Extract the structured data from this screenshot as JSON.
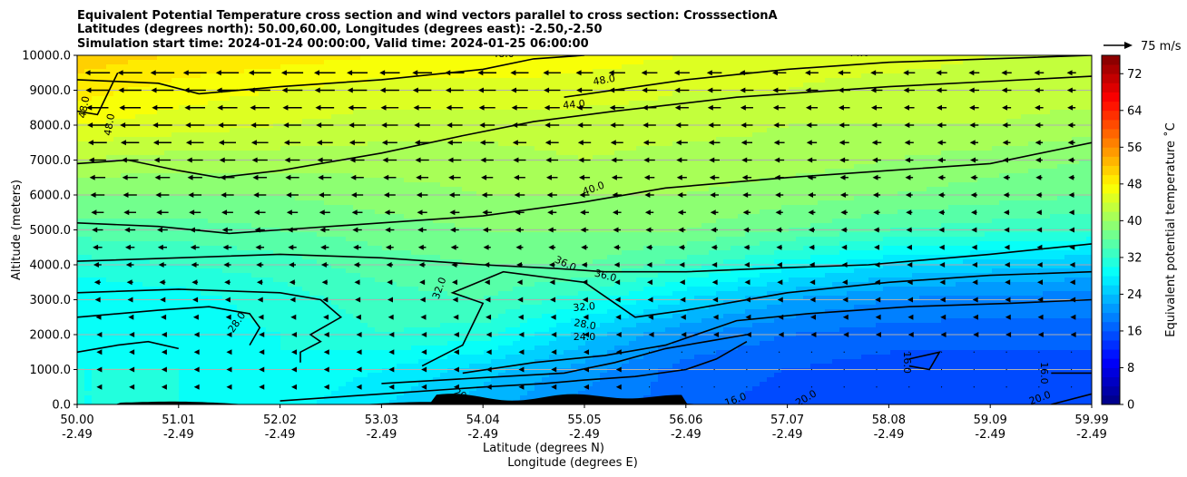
{
  "title_lines": [
    "Equivalent Potential Temperature cross section and wind vectors parallel to cross section: CrosssectionA",
    "Latitudes (degrees north): 50.00,60.00, Longitudes (degrees east): -2.50,-2.50",
    "Simulation start time: 2024-01-24 00:00:00, Valid time: 2024-01-25 06:00:00"
  ],
  "chart_data": {
    "type": "heatmap",
    "title": "Equivalent Potential Temperature cross section and wind vectors parallel to cross section: CrosssectionA",
    "ylabel": "Altitude (meters)",
    "xlabel_lines": [
      "Latitude (degrees N)",
      "Longitude (degrees E)"
    ],
    "ylim": [
      0,
      10000
    ],
    "x_ticks": [
      {
        "lat": "50.00",
        "lon": "-2.49"
      },
      {
        "lat": "51.01",
        "lon": "-2.49"
      },
      {
        "lat": "52.02",
        "lon": "-2.49"
      },
      {
        "lat": "53.03",
        "lon": "-2.49"
      },
      {
        "lat": "54.04",
        "lon": "-2.49"
      },
      {
        "lat": "55.05",
        "lon": "-2.49"
      },
      {
        "lat": "56.06",
        "lon": "-2.49"
      },
      {
        "lat": "57.07",
        "lon": "-2.49"
      },
      {
        "lat": "58.08",
        "lon": "-2.49"
      },
      {
        "lat": "59.09",
        "lon": "-2.49"
      },
      {
        "lat": "59.99",
        "lon": "-2.49"
      }
    ],
    "y_ticks": [
      "0.0",
      "1000.0",
      "2000.0",
      "3000.0",
      "4000.0",
      "5000.0",
      "6000.0",
      "7000.0",
      "8000.0",
      "9000.0",
      "10000.0"
    ],
    "y_tick_values": [
      0,
      1000,
      2000,
      3000,
      4000,
      5000,
      6000,
      7000,
      8000,
      9000,
      10000
    ],
    "grid": "horizontal",
    "colormap": "jet",
    "colorbar": {
      "label": "Equivalent potential temperature ˚C",
      "min": 0,
      "max": 76,
      "step": 2,
      "ticks": [
        "0",
        "8",
        "16",
        "24",
        "32",
        "40",
        "48",
        "56",
        "64",
        "72"
      ],
      "tick_values": [
        0,
        8,
        16,
        24,
        32,
        40,
        48,
        56,
        64,
        72
      ]
    },
    "quiver_key": "75 m/s",
    "contour_levels": [
      16.0,
      20.0,
      24.0,
      28.0,
      32.0,
      36.0,
      40.0,
      44.0,
      48.0
    ],
    "contour_labels": [
      "48.0",
      "48.0",
      "48.0",
      "44.0",
      "48.0",
      "44.0",
      "40.0",
      "36.0",
      "36.0",
      "32.0",
      "32.0",
      "28.0",
      "28.0",
      "24.0",
      "16.0",
      "16.0",
      "16.0",
      "20.0",
      "20.0",
      "20.0"
    ],
    "field_sample": {
      "x_lat": [
        50.0,
        51.01,
        52.02,
        53.03,
        54.04,
        55.05,
        56.06,
        57.07,
        58.08,
        59.09,
        59.99
      ],
      "z_m": [
        0,
        1000,
        2000,
        3000,
        4000,
        5000,
        6000,
        7000,
        8000,
        9000,
        10000
      ],
      "theta_e_c": [
        [
          30,
          30,
          29,
          26,
          23,
          19,
          17,
          15,
          14,
          14,
          14
        ],
        [
          30,
          30,
          30,
          28,
          25,
          21,
          17,
          16,
          15,
          15,
          15
        ],
        [
          29,
          29,
          30,
          32,
          31,
          25,
          20,
          18,
          17,
          17,
          17
        ],
        [
          28,
          29,
          31,
          33,
          34,
          31,
          26,
          22,
          20,
          19,
          19
        ],
        [
          31,
          32,
          33,
          35,
          36,
          36,
          33,
          29,
          26,
          25,
          24
        ],
        [
          35,
          35,
          36,
          37,
          38,
          38,
          38,
          36,
          34,
          33,
          32
        ],
        [
          38,
          38,
          38,
          39,
          40,
          40,
          40,
          39,
          38,
          37,
          36
        ],
        [
          42,
          41,
          41,
          41,
          41,
          42,
          41,
          41,
          40,
          39,
          38
        ],
        [
          46,
          45,
          44,
          43,
          43,
          43,
          43,
          42,
          42,
          42,
          41
        ],
        [
          49,
          47,
          46,
          45,
          45,
          45,
          44,
          44,
          43,
          43,
          43
        ],
        [
          51,
          50,
          49,
          48,
          48,
          47,
          46,
          45,
          45,
          44,
          44
        ]
      ]
    }
  }
}
